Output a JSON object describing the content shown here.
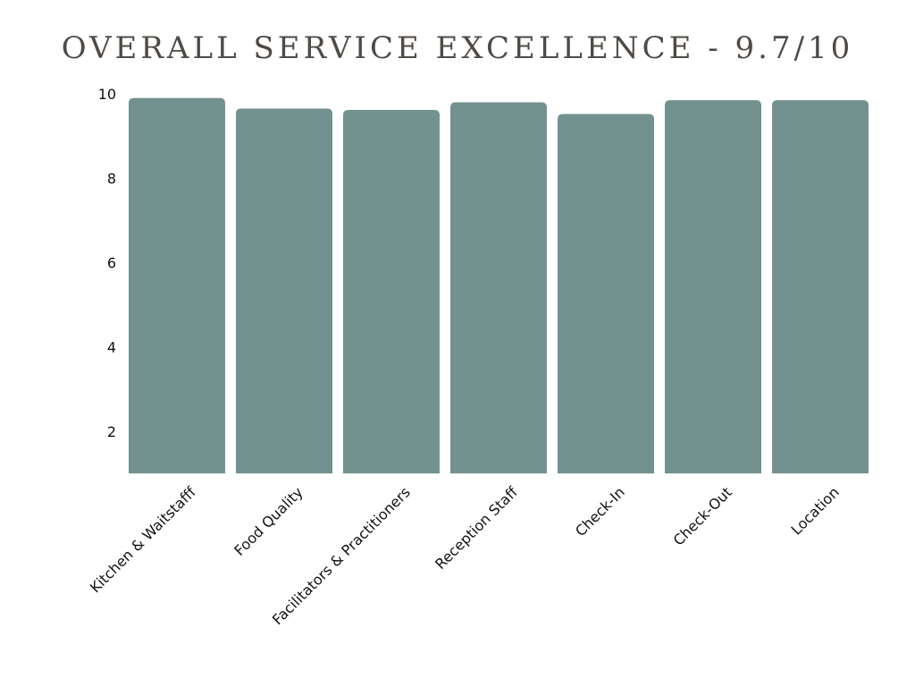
{
  "chart_data": {
    "type": "bar",
    "title": "OVERALL SERVICE EXCELLENCE - 9.7/10",
    "xlabel": "",
    "ylabel": "",
    "categories": [
      "Kitchen & Waitstafff",
      "Food Quality",
      "Facilitators & Practitioners",
      "Reception Staff",
      "Check-In",
      "Check-Out",
      "Location"
    ],
    "values": [
      9.9,
      9.65,
      9.62,
      9.8,
      9.52,
      9.85,
      9.85
    ],
    "yticks": [
      2,
      4,
      6,
      8,
      10
    ],
    "ylim": [
      1,
      10
    ],
    "grid": false,
    "legend": "none",
    "bar_color": "#73928f"
  }
}
